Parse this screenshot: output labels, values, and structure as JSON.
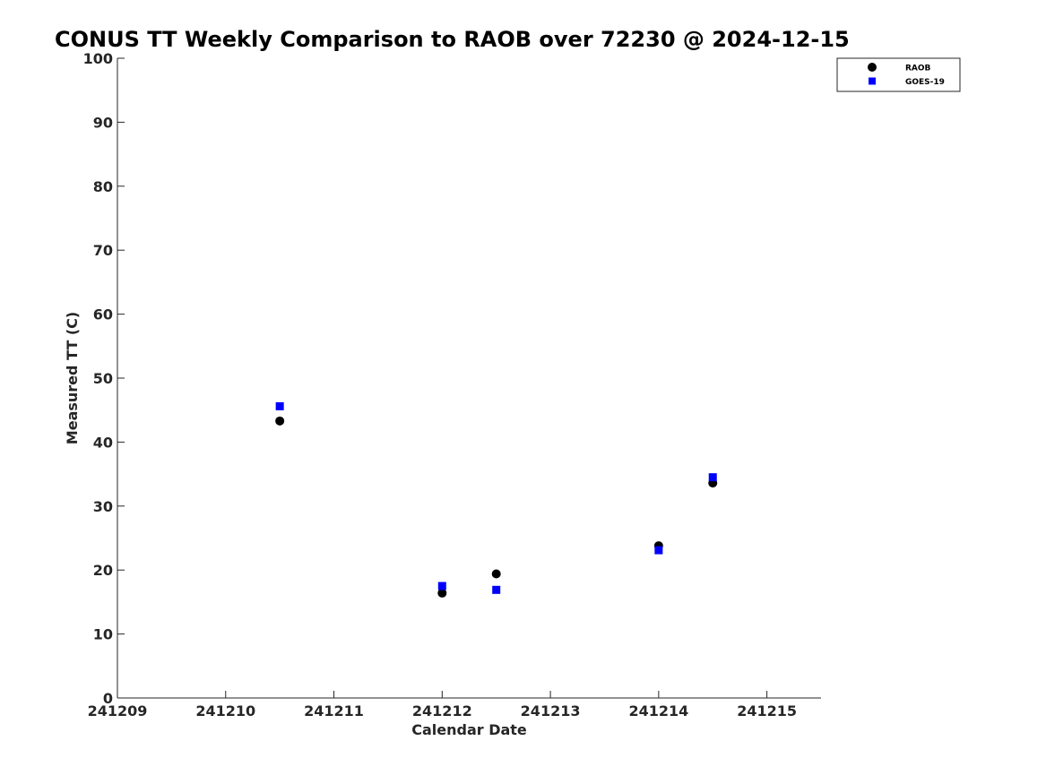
{
  "chart_data": {
    "type": "scatter",
    "title": "CONUS TT Weekly Comparison to RAOB over 72230 @ 2024-12-15",
    "xlabel": "Calendar Date",
    "ylabel": "Measured TT (C)",
    "xlim": [
      "2024-12-09",
      "2024-12-15 12:00"
    ],
    "ylim": [
      0,
      100
    ],
    "x_ticks": [
      {
        "value": "2024-12-09",
        "label": "241209"
      },
      {
        "value": "2024-12-10",
        "label": "241210"
      },
      {
        "value": "2024-12-11",
        "label": "241211"
      },
      {
        "value": "2024-12-12",
        "label": "241212"
      },
      {
        "value": "2024-12-13",
        "label": "241213"
      },
      {
        "value": "2024-12-14",
        "label": "241214"
      },
      {
        "value": "2024-12-15",
        "label": "241215"
      }
    ],
    "y_ticks": [
      0,
      10,
      20,
      30,
      40,
      50,
      60,
      70,
      80,
      90,
      100
    ],
    "grid": false,
    "legend_position": "top-right",
    "series": [
      {
        "name": "RAOB",
        "marker": "circle",
        "color": "#000000",
        "points": [
          {
            "x": "2024-12-10 12:00",
            "y": 43.3
          },
          {
            "x": "2024-12-12 00:00",
            "y": 16.4
          },
          {
            "x": "2024-12-12 12:00",
            "y": 19.4
          },
          {
            "x": "2024-12-14 00:00",
            "y": 23.8
          },
          {
            "x": "2024-12-14 12:00",
            "y": 33.6
          }
        ]
      },
      {
        "name": "GOES-19",
        "marker": "square",
        "color": "#0000ff",
        "points": [
          {
            "x": "2024-12-10 12:00",
            "y": 45.6
          },
          {
            "x": "2024-12-12 00:00",
            "y": 17.5
          },
          {
            "x": "2024-12-12 12:00",
            "y": 16.9
          },
          {
            "x": "2024-12-14 00:00",
            "y": 23.1
          },
          {
            "x": "2024-12-14 12:00",
            "y": 34.5
          }
        ]
      }
    ]
  }
}
